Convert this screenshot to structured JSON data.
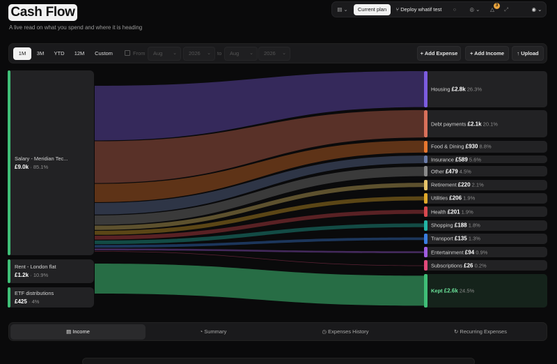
{
  "header": {
    "title": "Cash Flow",
    "subtitle": "A live read on what you spend and where it is heading"
  },
  "topbar": {
    "current_plan": "Current plan",
    "deploy": "Deploy whatif test",
    "notifications_count": "3",
    "icons": [
      "folder-icon",
      "dot-icon",
      "globe-icon",
      "bell-icon",
      "expand-icon",
      "avatar-icon"
    ]
  },
  "filters": {
    "ranges": [
      "1M",
      "3M",
      "YTD",
      "12M",
      "Custom"
    ],
    "active_range": "1M",
    "from_label": "From",
    "to_label": "to",
    "from_month": "Aug",
    "from_year": "2026",
    "to_month": "Aug",
    "to_year": "2026",
    "add_expense": "+ Add Expense",
    "add_income": "+ Add Income",
    "upload": "Upload"
  },
  "sources": [
    {
      "label": "Salary - Meridian Tec...",
      "amount": "£9.0k",
      "pct": "· 85.1%",
      "value": 9000
    },
    {
      "label": "Rent - London flat",
      "amount": "£1.2k",
      "pct": "· 10.9%",
      "value": 1150
    },
    {
      "label": "ETF distributions",
      "amount": "£425",
      "pct": "· 4%",
      "value": 425
    }
  ],
  "targets": [
    {
      "label": "Housing",
      "amount": "£2.8k",
      "pct": "26.3%",
      "value": 2780,
      "color": "#7c5ce0"
    },
    {
      "label": "Debt payments",
      "amount": "£2.1k",
      "pct": "20.1%",
      "value": 2125,
      "color": "#d9705a"
    },
    {
      "label": "Food & Dining",
      "amount": "£930",
      "pct": "8.8%",
      "value": 930,
      "color": "#e8772e"
    },
    {
      "label": "Insurance",
      "amount": "£589",
      "pct": "5.6%",
      "value": 589,
      "color": "#6a7ba8"
    },
    {
      "label": "Other",
      "amount": "£479",
      "pct": "4.5%",
      "value": 479,
      "color": "#8a8a8a"
    },
    {
      "label": "Retirement",
      "amount": "£220",
      "pct": "2.1%",
      "value": 220,
      "color": "#e6c46a"
    },
    {
      "label": "Utilities",
      "amount": "£206",
      "pct": "1.9%",
      "value": 206,
      "color": "#e0a92a"
    },
    {
      "label": "Health",
      "amount": "£201",
      "pct": "1.9%",
      "value": 201,
      "color": "#d9484f"
    },
    {
      "label": "Shopping",
      "amount": "£188",
      "pct": "1.8%",
      "value": 188,
      "color": "#22b5a5"
    },
    {
      "label": "Transport",
      "amount": "£135",
      "pct": "1.3%",
      "value": 135,
      "color": "#3a7de0"
    },
    {
      "label": "Entertainment",
      "amount": "£94",
      "pct": "0.9%",
      "value": 94,
      "color": "#a05ce0"
    },
    {
      "label": "Subscriptions",
      "amount": "£26",
      "pct": "0.2%",
      "value": 26,
      "color": "#e04a7a"
    },
    {
      "label": "Kept",
      "amount": "£2.6k",
      "pct": "24.5%",
      "value": 2600,
      "color": "#3fbf77"
    }
  ],
  "tabs": [
    "Income",
    "Summary",
    "Expenses History",
    "Recurring Expenses"
  ],
  "active_tab": "Income"
}
